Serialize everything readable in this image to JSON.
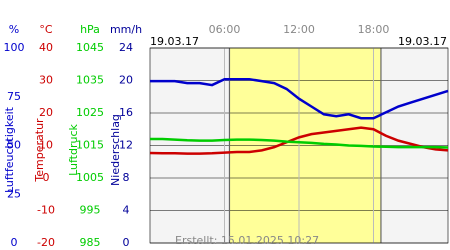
{
  "chart_data": {
    "type": "line",
    "date_left": "19.03.17",
    "date_right": "19.03.17",
    "footer": "Erstellt: 15.01.2025 10:27",
    "x": [
      0,
      1,
      2,
      3,
      4,
      5,
      6,
      7,
      8,
      9,
      10,
      11,
      12,
      13,
      14,
      15,
      16,
      17,
      18,
      19,
      20,
      21,
      22,
      23,
      24
    ],
    "xlim": [
      0,
      24
    ],
    "xticks": [
      {
        "value": 6,
        "label": "06:00"
      },
      {
        "value": 12,
        "label": "12:00"
      },
      {
        "value": 18,
        "label": "18:00"
      }
    ],
    "daylight": [
      6.4,
      18.6
    ],
    "daylight_color": "#ffff99",
    "grid": true,
    "axes": [
      {
        "unit": "%",
        "label": "Luftfeuchtigkeit",
        "color": "#0000cc",
        "ylim": [
          0,
          100
        ],
        "yticks": [
          100,
          75,
          50,
          25,
          0
        ]
      },
      {
        "unit": "°C",
        "label": "Temperatur",
        "color": "#cc0000",
        "ylim": [
          -20,
          40
        ],
        "yticks": [
          40,
          30,
          20,
          10,
          0,
          -10,
          -20
        ]
      },
      {
        "unit": "hPa",
        "label": "Luftdruck",
        "color": "#00cc00",
        "ylim": [
          985,
          1045
        ],
        "yticks": [
          1045,
          1035,
          1025,
          1015,
          1005,
          995,
          985
        ]
      },
      {
        "unit": "mm/h",
        "label": "Niederschlag",
        "color": "#000099",
        "ylim": [
          0,
          24
        ],
        "yticks": [
          24,
          20,
          16,
          12,
          8,
          4,
          0
        ]
      }
    ],
    "series": [
      {
        "name": "Luftfeuchtigkeit",
        "axis": 0,
        "color": "#0000cc",
        "values": [
          83,
          83,
          83,
          82,
          82,
          81,
          84,
          84,
          84,
          83,
          82,
          79,
          74,
          70,
          66,
          65,
          66,
          64,
          64,
          67,
          70,
          72,
          74,
          76,
          78
        ]
      },
      {
        "name": "Temperatur",
        "axis": 1,
        "color": "#cc0000",
        "values": [
          7.7,
          7.6,
          7.6,
          7.5,
          7.5,
          7.6,
          7.8,
          8,
          8,
          8.5,
          9.5,
          11,
          12.5,
          13.5,
          14,
          14.5,
          15,
          15.5,
          15,
          13,
          11.5,
          10.5,
          9.5,
          8.8,
          8.5
        ]
      },
      {
        "name": "Luftdruck",
        "axis": 2,
        "color": "#00cc00",
        "values": [
          1017,
          1017,
          1016.8,
          1016.6,
          1016.5,
          1016.5,
          1016.7,
          1016.8,
          1016.8,
          1016.7,
          1016.5,
          1016.2,
          1016,
          1015.8,
          1015.5,
          1015.3,
          1015,
          1014.9,
          1014.7,
          1014.6,
          1014.5,
          1014.5,
          1014.5,
          1014.5,
          1014.4
        ]
      }
    ]
  }
}
